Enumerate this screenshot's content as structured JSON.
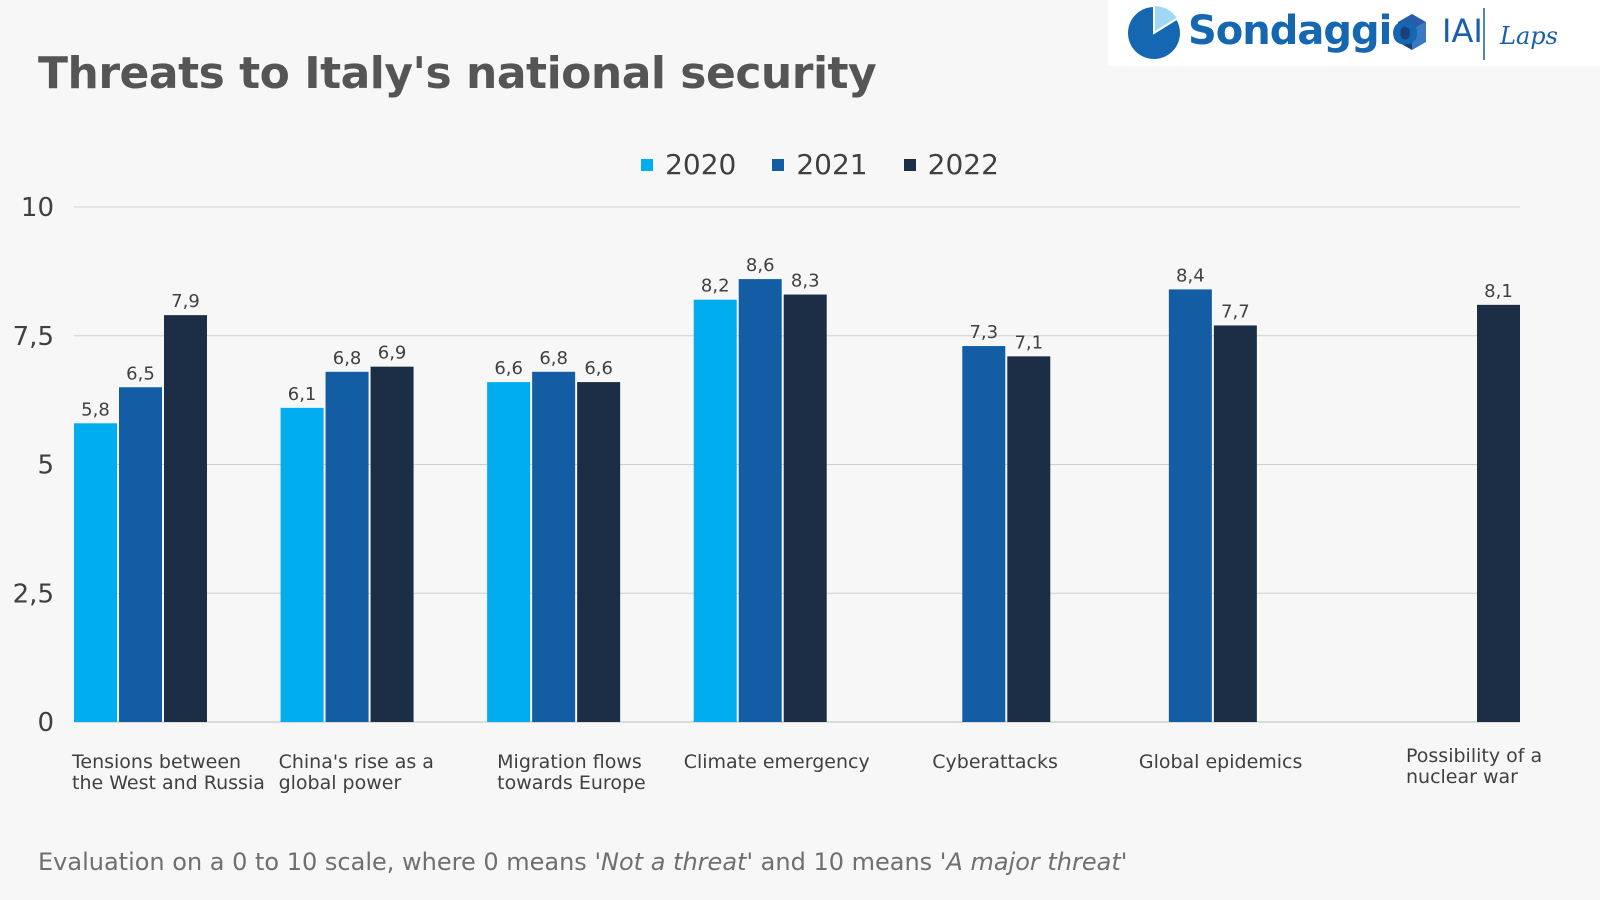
{
  "title": "Threats to Italy's national security",
  "logo": {
    "name": "Sondaggio",
    "partner1": "IAI",
    "partner2": "Laps"
  },
  "colors": {
    "2020": "#00aeef",
    "2021": "#135da4",
    "2022": "#1b2e45",
    "grid": "#d0d0d0",
    "background": "#f7f7f7"
  },
  "footnote": {
    "prefix": "Evaluation on a 0 to 10 scale, where 0 means '",
    "em1": "Not a threat",
    "mid": "' and 10 means '",
    "em2": "A major threat",
    "suffix": "'"
  },
  "chart_data": {
    "type": "bar",
    "title": "Threats to Italy's national security",
    "categories": [
      "Tensions between\nthe West and Russia",
      "China's rise as a\nglobal power",
      "Migration flows\ntowards Europe",
      "Climate emergency",
      "Cyberattacks",
      "Global epidemics",
      "Possibility of a\nnuclear war"
    ],
    "series": [
      {
        "name": "2020",
        "values": [
          5.8,
          6.1,
          6.6,
          8.2,
          null,
          null,
          null
        ],
        "labels": [
          "5,8",
          "6,1",
          "6,6",
          "8,2",
          "",
          "",
          ""
        ]
      },
      {
        "name": "2021",
        "values": [
          6.5,
          6.8,
          6.8,
          8.6,
          7.3,
          8.4,
          null
        ],
        "labels": [
          "6,5",
          "6,8",
          "6,8",
          "8,6",
          "7,3",
          "8,4",
          ""
        ]
      },
      {
        "name": "2022",
        "values": [
          7.9,
          6.9,
          6.6,
          8.3,
          7.1,
          7.7,
          8.1
        ],
        "labels": [
          "7,9",
          "6,9",
          "6,6",
          "8,3",
          "7,1",
          "7,7",
          "8,1"
        ]
      }
    ],
    "yticks": [
      "0",
      "2,5",
      "5",
      "7,5",
      "10"
    ],
    "ylim": [
      0,
      10
    ],
    "grid": true,
    "legend_position": "top-center"
  }
}
